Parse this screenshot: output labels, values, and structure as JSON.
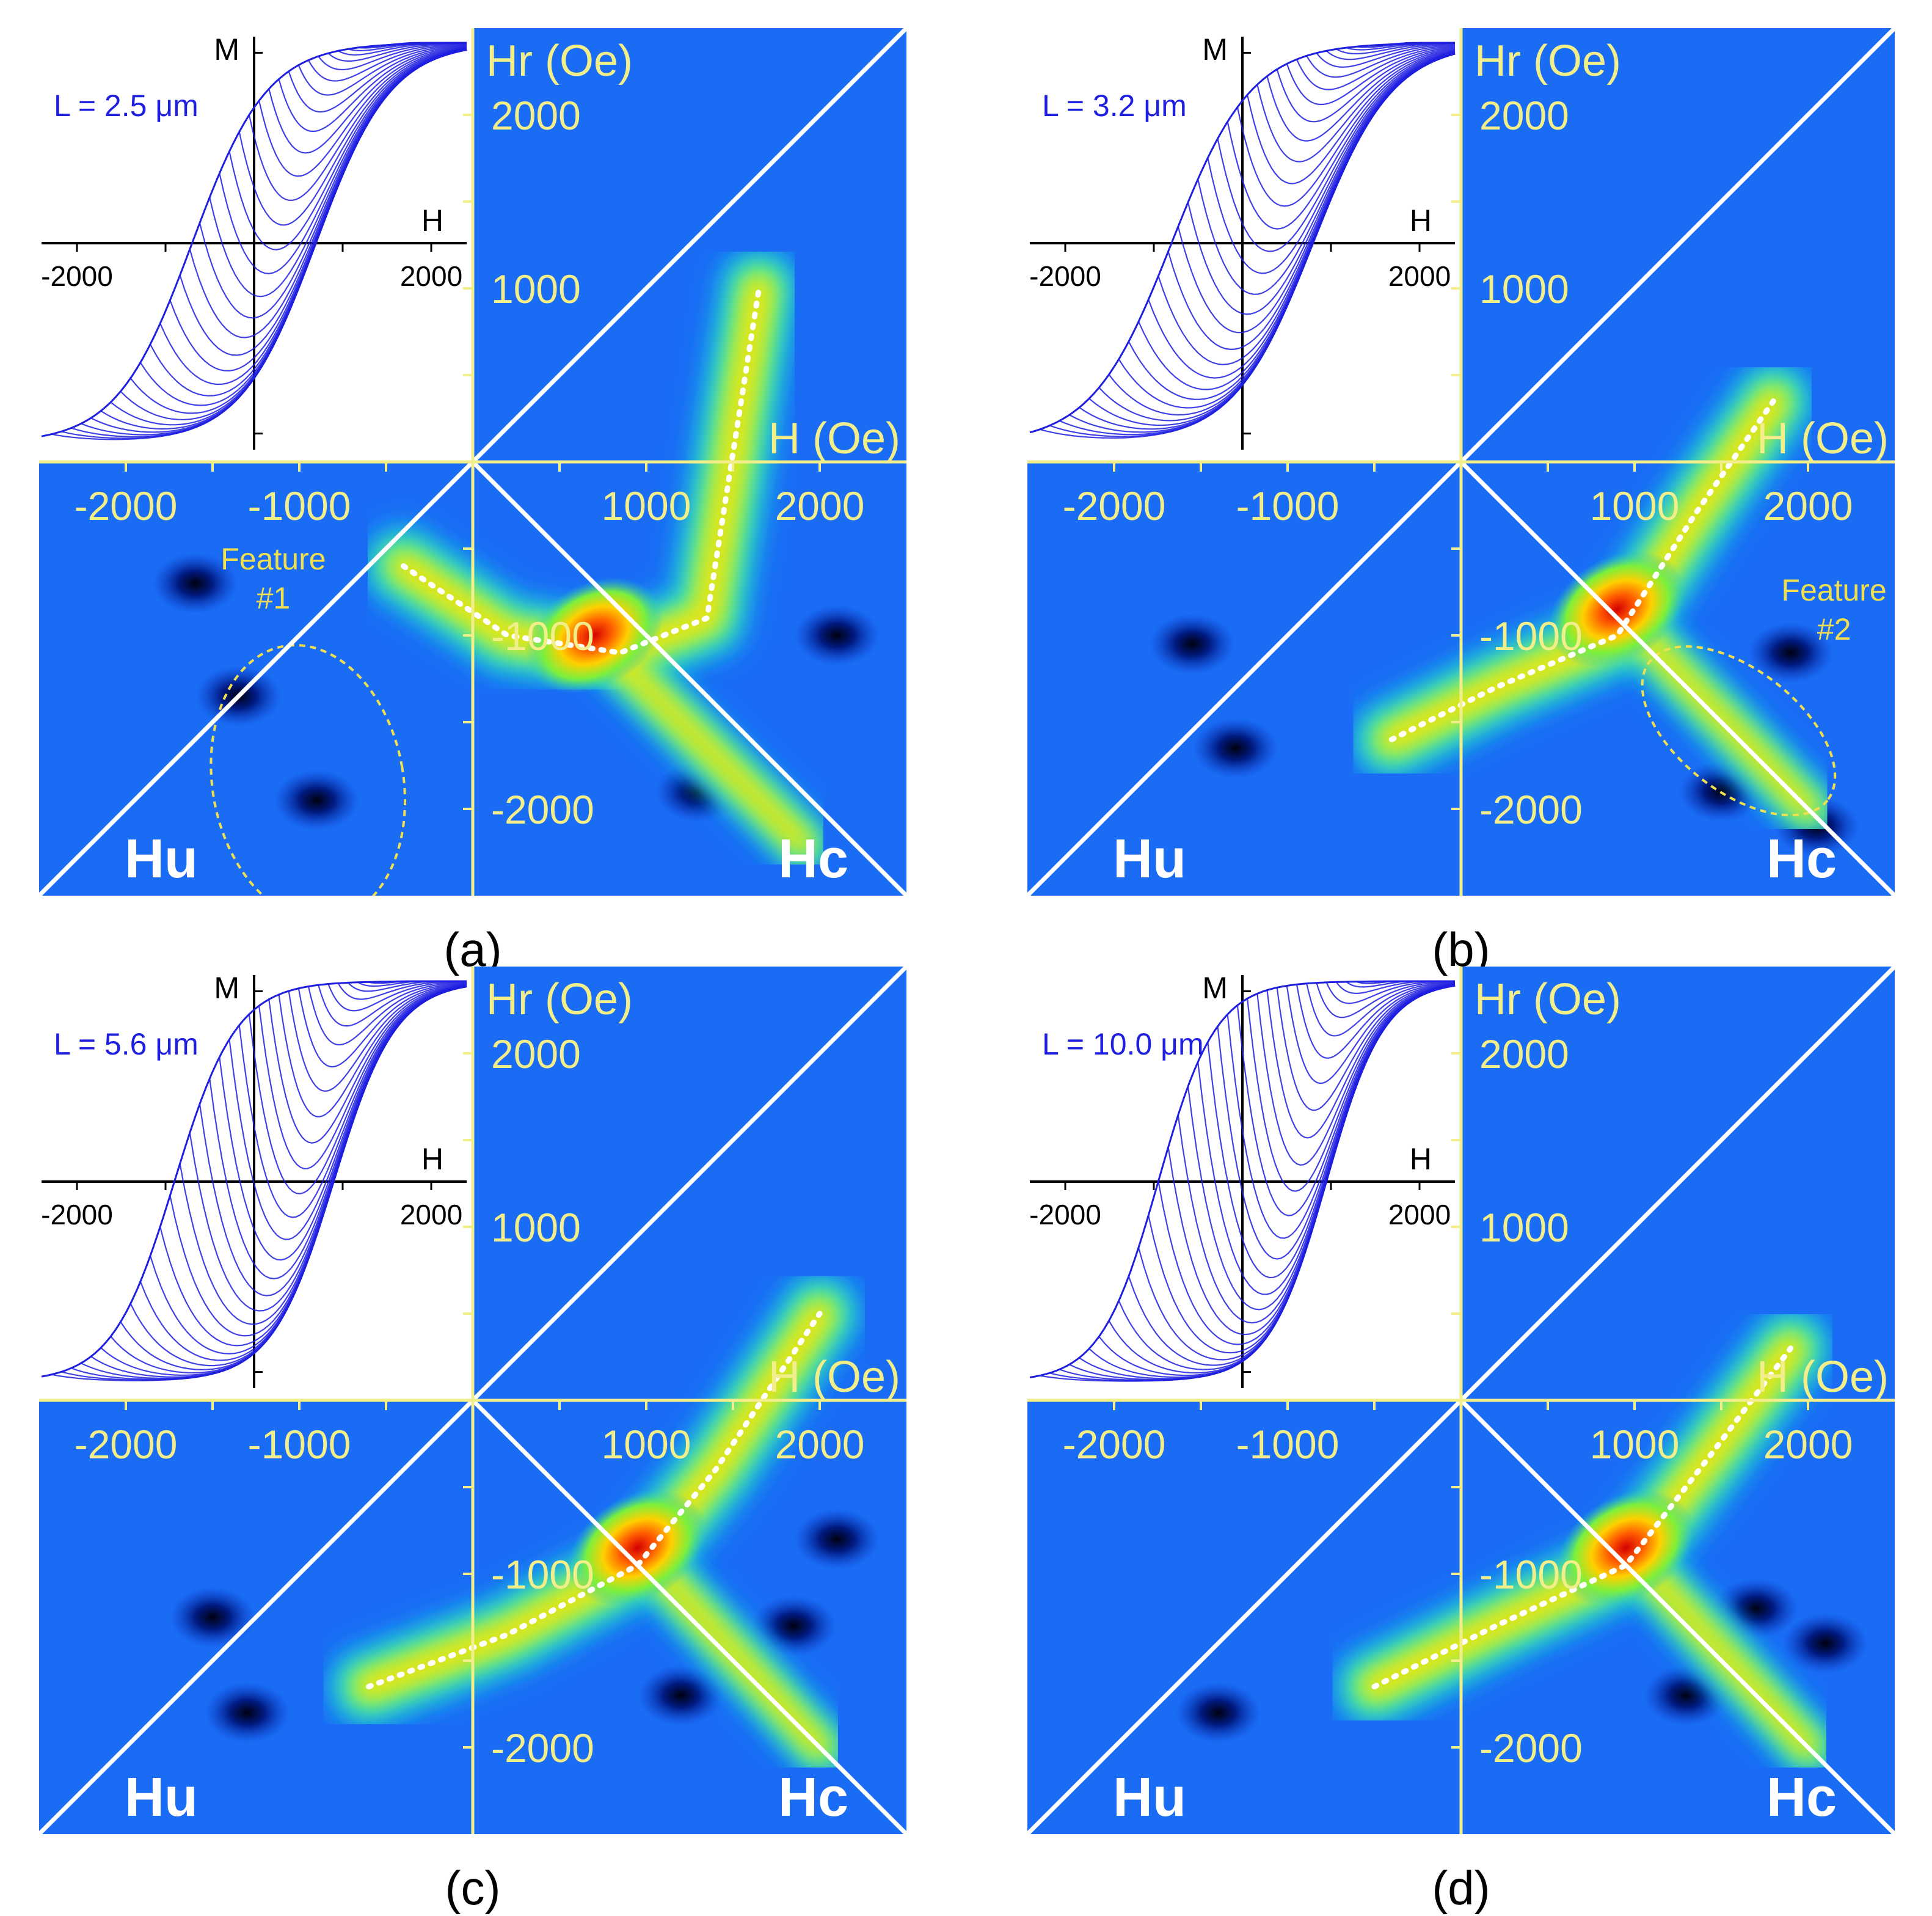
{
  "colors": {
    "background_blue": "#1a6cf5",
    "axis_yellow": "#f2ee8a",
    "curve_blue": "#1f1fe0",
    "line_white": "#ffffff",
    "feature_ellipse": "#f0e050"
  },
  "chart_data": [
    {
      "type": "heatmap",
      "panel_label": "(a)",
      "length_label": "L = 2.5 μm",
      "inset": {
        "type": "line",
        "xlabel": "H",
        "ylabel": "M",
        "xticks": [
          "-2000",
          "2000"
        ],
        "xlim": [
          -2400,
          2400
        ],
        "ylim": [
          -1,
          1
        ],
        "coercivity": 700,
        "transition_width": 850,
        "curve_count": 42
      },
      "xlabel": "H (Oe)",
      "ylabel": "Hr (Oe)",
      "diag_labels": {
        "u": "Hu",
        "c": "Hc"
      },
      "xticks": [
        "-2000",
        "-1000",
        "1000",
        "2000"
      ],
      "yticks": [
        "2000",
        "1000",
        "-1000",
        "-2000"
      ],
      "xlim": [
        -2500,
        2500
      ],
      "ylim": [
        -2500,
        2500
      ],
      "ridge_line": [
        [
          -400,
          -600
        ],
        [
          200,
          -1000
        ],
        [
          850,
          -1100
        ],
        [
          1350,
          -900
        ],
        [
          1650,
          1000
        ]
      ],
      "peak": [
        700,
        -1000
      ],
      "branch_end": [
        1900,
        -2200
      ],
      "feature": {
        "label_line1": "Feature",
        "label_line2": "#1",
        "center": [
          -950,
          -1850
        ],
        "rx": 550,
        "ry": 800
      },
      "negative_blobs": [
        [
          -900,
          -1950
        ],
        [
          -1350,
          -1350
        ],
        [
          -1600,
          -700
        ],
        [
          2100,
          -1000
        ],
        [
          1300,
          -1900
        ]
      ]
    },
    {
      "type": "heatmap",
      "panel_label": "(b)",
      "length_label": "L = 3.2 μm",
      "inset": {
        "type": "line",
        "xlabel": "H",
        "ylabel": "M",
        "xticks": [
          "-2000",
          "2000"
        ],
        "xlim": [
          -2400,
          2400
        ],
        "ylim": [
          -1,
          1
        ],
        "coercivity": 800,
        "transition_width": 900,
        "curve_count": 42
      },
      "xlabel": "H (Oe)",
      "ylabel": "Hr (Oe)",
      "diag_labels": {
        "u": "Hu",
        "c": "Hc"
      },
      "xticks": [
        "-2000",
        "-1000",
        "1000",
        "2000"
      ],
      "yticks": [
        "2000",
        "1000",
        "-1000",
        "-2000"
      ],
      "xlim": [
        -2500,
        2500
      ],
      "ylim": [
        -2500,
        2500
      ],
      "ridge_line": [
        [
          -400,
          -1600
        ],
        [
          200,
          -1300
        ],
        [
          900,
          -1000
        ],
        [
          1350,
          -300
        ],
        [
          1800,
          350
        ]
      ],
      "peak": [
        900,
        -850
      ],
      "branch_end": [
        2000,
        -2000
      ],
      "feature": {
        "label_line1": "Feature",
        "label_line2": "#2",
        "center": [
          1600,
          -1550
        ],
        "rx": 650,
        "ry": 350
      },
      "negative_blobs": [
        [
          -1300,
          -1650
        ],
        [
          -1550,
          -1050
        ],
        [
          1900,
          -1100
        ],
        [
          1500,
          -1900
        ],
        [
          2050,
          -2100
        ]
      ]
    },
    {
      "type": "heatmap",
      "panel_label": "(c)",
      "length_label": "L = 5.6 μm",
      "inset": {
        "type": "line",
        "xlabel": "H",
        "ylabel": "M",
        "xticks": [
          "-2000",
          "2000"
        ],
        "xlim": [
          -2400,
          2400
        ],
        "ylim": [
          -1,
          1
        ],
        "coercivity": 900,
        "transition_width": 700,
        "curve_count": 42
      },
      "xlabel": "H (Oe)",
      "ylabel": "Hr (Oe)",
      "diag_labels": {
        "u": "Hu",
        "c": "Hc"
      },
      "xticks": [
        "-2000",
        "-1000",
        "1000",
        "2000"
      ],
      "yticks": [
        "2000",
        "1000",
        "-1000",
        "-2000"
      ],
      "xlim": [
        -2500,
        2500
      ],
      "ylim": [
        -2500,
        2500
      ],
      "ridge_line": [
        [
          -600,
          -1650
        ],
        [
          200,
          -1350
        ],
        [
          950,
          -950
        ],
        [
          1400,
          -400
        ],
        [
          2000,
          500
        ]
      ],
      "peak": [
        950,
        -850
      ],
      "branch_end": [
        2000,
        -2000
      ],
      "feature": null,
      "negative_blobs": [
        [
          -1300,
          -1800
        ],
        [
          -1500,
          -1250
        ],
        [
          1850,
          -1300
        ],
        [
          2100,
          -800
        ],
        [
          1200,
          -1700
        ]
      ]
    },
    {
      "type": "heatmap",
      "panel_label": "(d)",
      "length_label": "L = 10.0 μm",
      "inset": {
        "type": "line",
        "xlabel": "H",
        "ylabel": "M",
        "xticks": [
          "-2000",
          "2000"
        ],
        "xlim": [
          -2400,
          2400
        ],
        "ylim": [
          -1,
          1
        ],
        "coercivity": 950,
        "transition_width": 650,
        "curve_count": 42
      },
      "xlabel": "H (Oe)",
      "ylabel": "Hr (Oe)",
      "diag_labels": {
        "u": "Hu",
        "c": "Hc"
      },
      "xticks": [
        "-2000",
        "-1000",
        "1000",
        "2000"
      ],
      "yticks": [
        "2000",
        "1000",
        "-1000",
        "-2000"
      ],
      "xlim": [
        -2500,
        2500
      ],
      "ylim": [
        -2500,
        2500
      ],
      "ridge_line": [
        [
          -500,
          -1650
        ],
        [
          200,
          -1300
        ],
        [
          950,
          -950
        ],
        [
          1450,
          -300
        ],
        [
          1900,
          300
        ]
      ],
      "peak": [
        950,
        -850
      ],
      "branch_end": [
        2000,
        -2000
      ],
      "feature": null,
      "negative_blobs": [
        [
          -1400,
          -1800
        ],
        [
          1700,
          -1200
        ],
        [
          2100,
          -1400
        ],
        [
          1300,
          -1700
        ]
      ]
    }
  ]
}
